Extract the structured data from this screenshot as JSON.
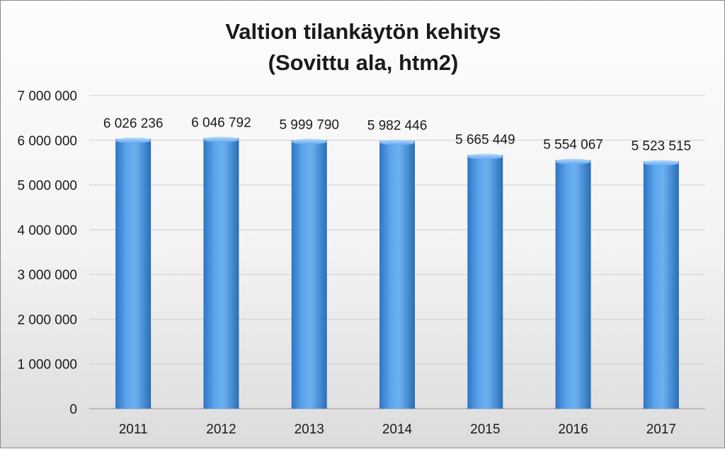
{
  "chart_data": {
    "type": "bar",
    "title": "Valtion tilankäytön kehitys",
    "subtitle": "(Sovittu ala, htm2)",
    "categories": [
      "2011",
      "2012",
      "2013",
      "2014",
      "2015",
      "2016",
      "2017"
    ],
    "values": [
      6026236,
      6046792,
      5999790,
      5982446,
      5665449,
      5554067,
      5523515
    ],
    "value_labels": [
      "6 026 236",
      "6 046 792",
      "5 999 790",
      "5 982 446",
      "5 665 449",
      "5 554 067",
      "5 523 515"
    ],
    "ylim": [
      0,
      7000000
    ],
    "yticks": [
      0,
      1000000,
      2000000,
      3000000,
      4000000,
      5000000,
      6000000,
      7000000
    ],
    "ytick_labels": [
      "0",
      "1 000 000",
      "2 000 000",
      "3 000 000",
      "4 000 000",
      "5 000 000",
      "6 000 000",
      "7 000 000"
    ],
    "grid": true,
    "legend": "none",
    "bar_color": "#4a90d9"
  }
}
